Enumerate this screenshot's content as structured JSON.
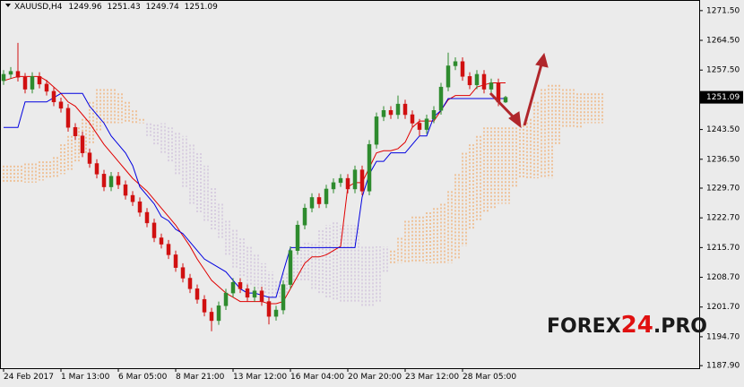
{
  "chart_data": {
    "type": "candlestick",
    "title": "XAUUSD,H4",
    "watermark": {
      "prefix": "FOREX",
      "highlight": "24",
      "suffix": ".PRO"
    },
    "up_color": "#2e8b2e",
    "down_color": "#d01010",
    "categories": [
      "24 Feb 2017",
      null,
      null,
      null,
      null,
      null,
      null,
      null,
      "1 Mar 13:00",
      null,
      null,
      null,
      null,
      null,
      null,
      null,
      "6 Mar 05:00",
      null,
      null,
      null,
      null,
      null,
      null,
      null,
      "8 Mar 21:00",
      null,
      null,
      null,
      null,
      null,
      null,
      null,
      "13 Mar 12:00",
      null,
      null,
      null,
      null,
      null,
      null,
      null,
      "16 Mar 04:00",
      null,
      null,
      null,
      null,
      null,
      null,
      null,
      "20 Mar 20:00",
      null,
      null,
      null,
      null,
      null,
      null,
      null,
      "23 Mar 12:00",
      null,
      null,
      null,
      null,
      null,
      null,
      null,
      "28 Mar 05:00",
      null,
      null,
      null,
      null,
      null,
      null,
      null,
      null,
      null,
      null,
      null,
      null,
      null,
      null,
      null,
      null,
      null,
      null,
      null
    ],
    "open": [
      1255.0,
      1256.5,
      1257.2,
      1255.8,
      1253.0,
      1256.0,
      1254.2,
      1252.5,
      1250.0,
      1248.5,
      1244.0,
      1242.0,
      1238.0,
      1235.5,
      1233.0,
      1230.0,
      1232.5,
      1230.5,
      1228.0,
      1226.5,
      1224.0,
      1221.5,
      1218.0,
      1216.5,
      1214.0,
      1211.0,
      1208.5,
      1206.0,
      1203.5,
      1200.5,
      1198.5,
      1202.0,
      1205.0,
      1207.5,
      1206.0,
      1204.0,
      1205.5,
      1203.0,
      1199.5,
      1201.0,
      1207.0,
      1215.0,
      1221.0,
      1225.0,
      1227.5,
      1226.0,
      1229.5,
      1231.0,
      1232.0,
      1229.5,
      1234.0,
      1229.0,
      1240.0,
      1246.5,
      1248.0,
      1247.0,
      1249.5,
      1247.0,
      1245.0,
      1243.5,
      1246.0,
      1248.0,
      1253.5,
      1258.5,
      1259.5,
      1256.0,
      1254.0,
      1256.5,
      1253.0,
      1254.5,
      1249.96,
      null,
      null,
      null,
      null,
      null,
      null,
      null,
      null,
      null,
      null,
      null,
      null,
      null
    ],
    "high": [
      1257.5,
      1258.2,
      1263.9,
      1256.8,
      1257.0,
      1257.0,
      1255.2,
      1253.5,
      1251.0,
      1249.5,
      1245.0,
      1243.0,
      1239.0,
      1236.5,
      1234.0,
      1233.5,
      1233.5,
      1231.5,
      1229.0,
      1227.5,
      1225.0,
      1222.5,
      1219.0,
      1217.5,
      1215.0,
      1212.0,
      1209.5,
      1207.0,
      1204.5,
      1201.5,
      1203.0,
      1206.0,
      1208.5,
      1208.5,
      1207.0,
      1206.5,
      1206.5,
      1204.0,
      1202.0,
      1208.0,
      1216.0,
      1222.0,
      1226.0,
      1228.5,
      1228.5,
      1230.5,
      1232.0,
      1233.0,
      1233.0,
      1235.0,
      1235.0,
      1241.0,
      1247.5,
      1249.0,
      1249.0,
      1251.5,
      1250.5,
      1248.0,
      1246.0,
      1247.0,
      1249.0,
      1254.5,
      1261.6,
      1260.5,
      1260.5,
      1257.0,
      1257.5,
      1257.5,
      1255.5,
      1255.5,
      1251.43,
      null,
      null,
      null,
      null,
      null,
      null,
      null,
      null,
      null,
      null,
      null,
      null,
      null
    ],
    "low": [
      1254.0,
      1255.5,
      1254.8,
      1252.0,
      1252.0,
      1253.2,
      1251.5,
      1249.0,
      1247.5,
      1243.0,
      1241.0,
      1237.0,
      1234.5,
      1232.0,
      1229.0,
      1229.0,
      1229.5,
      1227.0,
      1225.5,
      1223.0,
      1220.5,
      1217.0,
      1215.5,
      1213.0,
      1210.0,
      1207.5,
      1205.0,
      1202.5,
      1199.5,
      1196.0,
      1197.5,
      1201.0,
      1204.0,
      1205.0,
      1203.0,
      1203.0,
      1202.0,
      1197.6,
      1198.5,
      1200.0,
      1206.0,
      1214.0,
      1220.0,
      1224.0,
      1225.0,
      1225.0,
      1228.5,
      1230.0,
      1228.5,
      1228.5,
      1228.0,
      1228.0,
      1239.0,
      1245.5,
      1246.0,
      1246.0,
      1246.0,
      1244.0,
      1242.0,
      1242.5,
      1245.0,
      1247.0,
      1252.5,
      1257.5,
      1255.0,
      1253.0,
      1253.0,
      1252.0,
      1252.0,
      1249.0,
      1249.74,
      null,
      null,
      null,
      null,
      null,
      null,
      null,
      null,
      null,
      null,
      null,
      null,
      null
    ],
    "close": [
      1256.5,
      1257.2,
      1255.8,
      1253.0,
      1256.0,
      1254.2,
      1252.5,
      1250.0,
      1248.5,
      1244.0,
      1242.0,
      1238.0,
      1235.5,
      1233.0,
      1230.0,
      1232.5,
      1230.5,
      1228.0,
      1226.5,
      1224.0,
      1221.5,
      1218.0,
      1216.5,
      1214.0,
      1211.0,
      1208.5,
      1206.0,
      1203.5,
      1200.5,
      1198.5,
      1202.0,
      1205.0,
      1207.5,
      1206.0,
      1204.0,
      1205.5,
      1203.0,
      1199.5,
      1201.0,
      1207.0,
      1215.0,
      1221.0,
      1225.0,
      1227.5,
      1226.0,
      1229.5,
      1231.0,
      1232.0,
      1229.5,
      1234.0,
      1229.0,
      1240.0,
      1246.5,
      1248.0,
      1247.0,
      1249.5,
      1247.0,
      1245.0,
      1243.5,
      1246.0,
      1248.0,
      1253.5,
      1258.5,
      1259.5,
      1256.0,
      1254.0,
      1256.5,
      1253.0,
      1254.5,
      1249.96,
      1251.09,
      null,
      null,
      null,
      null,
      null,
      null,
      null,
      null,
      null,
      null,
      null,
      null,
      null
    ],
    "lines": [
      {
        "color": "#e00000",
        "values": [
          1255,
          1255.5,
          1256,
          1256,
          1256,
          1256,
          1255,
          1253.5,
          1252,
          1250,
          1249,
          1247,
          1245,
          1242.5,
          1240,
          1238,
          1236,
          1234,
          1232,
          1230.5,
          1229,
          1227,
          1225,
          1223,
          1221,
          1218.5,
          1216,
          1213,
          1210.5,
          1208,
          1206.5,
          1205,
          1204,
          1203,
          1203,
          1203,
          1203,
          1202.5,
          1202.5,
          1203,
          1206,
          1209,
          1212,
          1213.5,
          1213.5,
          1214,
          1215,
          1216,
          1230,
          1231,
          1231,
          1234.5,
          1238,
          1238.5,
          1238.5,
          1239,
          1240.5,
          1244,
          1245.5,
          1245.5,
          1245.5,
          1248,
          1250.5,
          1251.5,
          1251.5,
          1251.5,
          1253.5,
          1254,
          1254.5,
          1254.5,
          1254.5,
          null,
          null,
          null,
          null,
          null,
          null,
          null,
          null,
          null,
          null,
          null,
          null,
          null
        ]
      },
      {
        "color": "#0000e0",
        "values": [
          1244,
          1244,
          1244,
          1250,
          1250,
          1250,
          1250,
          1251,
          1252,
          1252,
          1252,
          1252,
          1249,
          1247,
          1245,
          1242,
          1240,
          1238,
          1235,
          1230,
          1228,
          1226,
          1223,
          1222,
          1220,
          1219,
          1217,
          1215,
          1213,
          1212,
          1211,
          1210,
          1208,
          1206,
          1205,
          1205,
          1204.5,
          1204,
          1204,
          1210,
          1215.7,
          1215.7,
          1215.7,
          1215.7,
          1215.7,
          1215.7,
          1215.7,
          1215.7,
          1215.7,
          1215.7,
          1227.6,
          1233,
          1236,
          1236,
          1238,
          1238,
          1238,
          1240,
          1242,
          1242,
          1246.5,
          1248,
          1250.8,
          1250.8,
          1250.8,
          1250.8,
          1250.8,
          1250.8,
          1250.8,
          1250.8,
          1250.8,
          null,
          null,
          null,
          null,
          null,
          null,
          null,
          null,
          null,
          null,
          null,
          null,
          null
        ]
      }
    ],
    "cloud": {
      "up_color": "#f29a4a",
      "down_color": "#c4b0d4",
      "span_a": [
        1235,
        1235,
        1235,
        1235.5,
        1235.5,
        1236,
        1236,
        1237,
        1240,
        1242,
        1244,
        1246,
        1250,
        1253,
        1253,
        1253,
        1252,
        1250,
        1248,
        1246,
        1242,
        1240,
        1238,
        1236,
        1233,
        1230,
        1226,
        1224,
        1222,
        1220,
        1218,
        1214,
        1211,
        1209,
        1207,
        1206,
        1205,
        1204,
        1204,
        1205,
        1208,
        1208,
        1208,
        1206,
        1205,
        1204,
        1203.5,
        1203,
        1203,
        1203,
        1202,
        1202,
        1203,
        1210,
        1215,
        1218,
        1222,
        1223,
        1223,
        1224,
        1225,
        1226,
        1229,
        1233,
        1238,
        1240,
        1242,
        1244,
        1244,
        1244,
        1244,
        1244,
        1244.5,
        1246,
        1250,
        1253,
        1254,
        1254,
        1253,
        1253,
        1252,
        1252,
        1252,
        1252
      ],
      "span_b": [
        1231,
        1231,
        1231,
        1231,
        1231,
        1231.5,
        1232,
        1232,
        1233,
        1234,
        1236,
        1238,
        1240,
        1243,
        1245,
        1245,
        1245,
        1245,
        1245,
        1245,
        1245,
        1245,
        1245,
        1244,
        1243,
        1242,
        1240,
        1238,
        1235,
        1230,
        1226,
        1222,
        1220,
        1218,
        1216,
        1214,
        1212,
        1210,
        1208,
        1210,
        1214,
        1216,
        1217,
        1217,
        1220,
        1221,
        1222,
        1221,
        1221,
        1221,
        1216,
        1216,
        1216,
        1216,
        1212,
        1212,
        1212,
        1212,
        1212,
        1212,
        1212,
        1212,
        1212,
        1213,
        1216,
        1220,
        1222,
        1224,
        1225,
        1226,
        1226,
        1230,
        1232,
        1232,
        1232,
        1232,
        1232,
        1240,
        1244,
        1244,
        1244,
        1245,
        1245,
        1245
      ]
    },
    "ylim": [
      1187.3,
      1274.0
    ],
    "yticks": [
      {
        "value": 1271.5,
        "label": "1271.50"
      },
      {
        "value": 1264.5,
        "label": "1264.50"
      },
      {
        "value": 1257.5,
        "label": "1257.50"
      },
      {
        "value": 1243.5,
        "label": "1243.50"
      },
      {
        "value": 1236.5,
        "label": "1236.50"
      },
      {
        "value": 1229.7,
        "label": "1229.70"
      },
      {
        "value": 1222.7,
        "label": "1222.70"
      },
      {
        "value": 1215.7,
        "label": "1215.70"
      },
      {
        "value": 1208.7,
        "label": "1208.70"
      },
      {
        "value": 1201.7,
        "label": "1201.70"
      },
      {
        "value": 1194.7,
        "label": "1194.70"
      },
      {
        "value": 1187.9,
        "label": "1187.90"
      }
    ]
  }
}
